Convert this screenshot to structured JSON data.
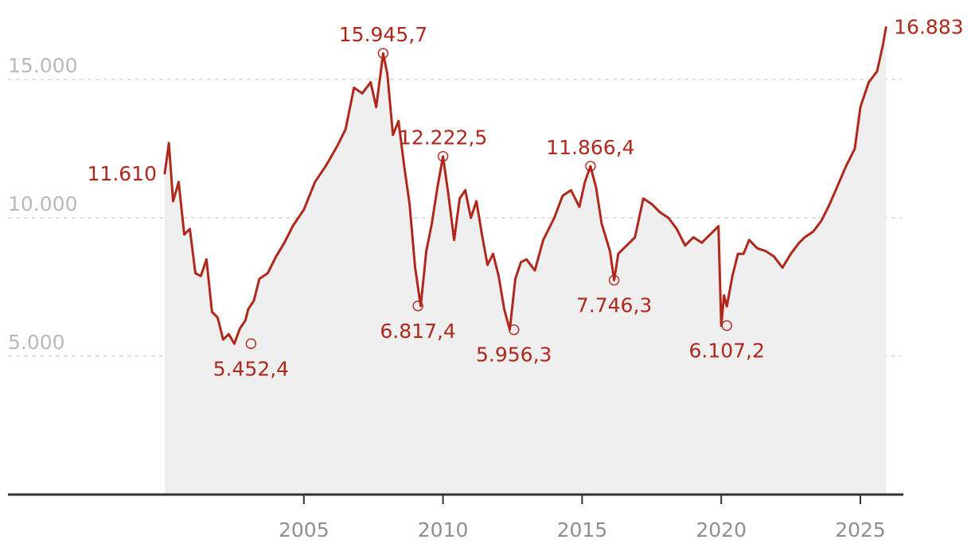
{
  "chart_data": {
    "type": "area",
    "title": "",
    "xlabel": "",
    "ylabel": "",
    "ylim": [
      0,
      17500
    ],
    "grid": "horizontal dashed",
    "colors": {
      "line": "#b0281c",
      "area": "#efefef",
      "grid": "#cfcfcf",
      "axis": "#333333"
    },
    "y_ticks": [
      {
        "value": 5000,
        "label": "5.000"
      },
      {
        "value": 10000,
        "label": "10.000"
      },
      {
        "value": 15000,
        "label": "15.000"
      }
    ],
    "x_ticks": [
      {
        "value": 2005,
        "label": "2005"
      },
      {
        "value": 2010,
        "label": "2010"
      },
      {
        "value": 2015,
        "label": "2015"
      },
      {
        "value": 2020,
        "label": "2020"
      },
      {
        "value": 2025,
        "label": "2025"
      }
    ],
    "series": [
      {
        "x": [
          2000.0,
          2000.15,
          2000.3,
          2000.5,
          2000.7,
          2000.9,
          2001.1,
          2001.3,
          2001.5,
          2001.7,
          2001.9,
          2002.1,
          2002.3,
          2002.5,
          2002.7,
          2002.9,
          2003.0,
          2003.2,
          2003.4,
          2003.7,
          2004.0,
          2004.3,
          2004.6,
          2005.0,
          2005.4,
          2005.8,
          2006.2,
          2006.5,
          2006.8,
          2007.1,
          2007.4,
          2007.6,
          2007.85,
          2008.0,
          2008.2,
          2008.4,
          2008.6,
          2008.8,
          2009.0,
          2009.2,
          2009.4,
          2009.6,
          2009.8,
          2010.0,
          2010.2,
          2010.4,
          2010.6,
          2010.8,
          2011.0,
          2011.2,
          2011.4,
          2011.6,
          2011.8,
          2012.0,
          2012.2,
          2012.4,
          2012.6,
          2012.8,
          2013.0,
          2013.3,
          2013.6,
          2014.0,
          2014.3,
          2014.6,
          2014.9,
          2015.1,
          2015.3,
          2015.5,
          2015.7,
          2016.0,
          2016.15,
          2016.3,
          2016.6,
          2016.9,
          2017.2,
          2017.5,
          2017.8,
          2018.1,
          2018.4,
          2018.7,
          2019.0,
          2019.3,
          2019.6,
          2019.9,
          2020.0,
          2020.1,
          2020.2,
          2020.4,
          2020.6,
          2020.8,
          2021.0,
          2021.3,
          2021.6,
          2021.9,
          2022.2,
          2022.5,
          2022.8,
          2023.0,
          2023.3,
          2023.6,
          2023.9,
          2024.2,
          2024.5,
          2024.8,
          2025.0,
          2025.3,
          2025.6,
          2025.8,
          2025.92
        ],
        "values": [
          11610,
          12700,
          10600,
          11300,
          9400,
          9600,
          8000,
          7900,
          8500,
          6600,
          6400,
          5600,
          5800,
          5452.4,
          6000,
          6300,
          6700,
          7000,
          7800,
          8000,
          8600,
          9100,
          9700,
          10300,
          11300,
          11900,
          12600,
          13200,
          14700,
          14500,
          14900,
          14000,
          15945.7,
          15200,
          13000,
          13500,
          11900,
          10500,
          8200,
          6817.4,
          8800,
          9800,
          11100,
          12222.5,
          10800,
          9200,
          10700,
          11000,
          10000,
          10600,
          9400,
          8300,
          8700,
          7900,
          6700,
          5956.3,
          7800,
          8400,
          8500,
          8100,
          9200,
          10000,
          10800,
          11000,
          10400,
          11300,
          11866.4,
          11100,
          9800,
          8800,
          7746.3,
          8700,
          9000,
          9300,
          10700,
          10500,
          10200,
          10000,
          9600,
          9000,
          9300,
          9100,
          9400,
          9700,
          6107.2,
          7200,
          6800,
          7900,
          8700,
          8700,
          9200,
          8900,
          8800,
          8600,
          8200,
          8700,
          9100,
          9300,
          9500,
          9900,
          10500,
          11200,
          11900,
          12500,
          14000,
          14900,
          15300,
          16200,
          16883
        ]
      }
    ],
    "annotations": [
      {
        "x": 2000.0,
        "y": 11610,
        "label": "11.610",
        "anchor": "end",
        "marker": false
      },
      {
        "x": 2003.1,
        "y": 5452.4,
        "label": "5.452,4",
        "anchor": "middle",
        "pos": "below",
        "marker": true
      },
      {
        "x": 2007.85,
        "y": 15945.7,
        "label": "15.945,7",
        "anchor": "middle",
        "pos": "above",
        "marker": true
      },
      {
        "x": 2009.1,
        "y": 6817.4,
        "label": "6.817,4",
        "anchor": "middle",
        "pos": "below",
        "marker": true
      },
      {
        "x": 2010.0,
        "y": 12222.5,
        "label": "12.222,5",
        "anchor": "middle",
        "pos": "above",
        "marker": true
      },
      {
        "x": 2012.55,
        "y": 5956.3,
        "label": "5.956,3",
        "anchor": "middle",
        "pos": "below",
        "marker": true
      },
      {
        "x": 2015.3,
        "y": 11866.4,
        "label": "11.866,4",
        "anchor": "middle",
        "pos": "above",
        "marker": true
      },
      {
        "x": 2016.15,
        "y": 7746.3,
        "label": "7.746,3",
        "anchor": "middle",
        "pos": "below",
        "marker": true
      },
      {
        "x": 2020.2,
        "y": 6107.2,
        "label": "6.107,2",
        "anchor": "middle",
        "pos": "below",
        "marker": true
      },
      {
        "x": 2025.92,
        "y": 16883,
        "label": "16.883",
        "anchor": "start",
        "marker": false
      }
    ]
  }
}
